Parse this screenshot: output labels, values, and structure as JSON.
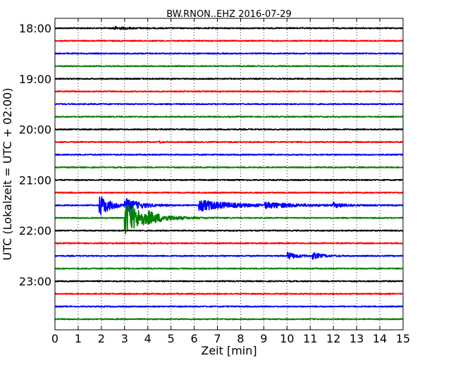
{
  "chart_data": {
    "type": "line",
    "title": "BW.RNON..EHZ 2016-07-29",
    "xlabel": "Zeit  [min]",
    "ylabel": "UTC (Lokalzeit = UTC + 02:00)",
    "xlim": [
      0,
      15
    ],
    "x_ticks": [
      "0",
      "1",
      "2",
      "3",
      "4",
      "5",
      "6",
      "7",
      "8",
      "9",
      "10",
      "11",
      "12",
      "13",
      "14",
      "15"
    ],
    "y_ticks": [
      "18:00",
      "19:00",
      "20:00",
      "21:00",
      "22:00",
      "23:00"
    ],
    "grid": true,
    "trace_colors": [
      "#000000",
      "#ff0000",
      "#0000ff",
      "#008000"
    ],
    "traces": [
      {
        "start": "18:00",
        "color": "#000000",
        "events": [
          {
            "t": 2.5,
            "amp": 0.25,
            "dur": 1.2
          }
        ]
      },
      {
        "start": "18:15",
        "color": "#ff0000",
        "events": []
      },
      {
        "start": "18:30",
        "color": "#0000ff",
        "events": []
      },
      {
        "start": "18:45",
        "color": "#008000",
        "events": []
      },
      {
        "start": "19:00",
        "color": "#000000",
        "events": []
      },
      {
        "start": "19:15",
        "color": "#ff0000",
        "events": []
      },
      {
        "start": "19:30",
        "color": "#0000ff",
        "events": []
      },
      {
        "start": "19:45",
        "color": "#008000",
        "events": []
      },
      {
        "start": "20:00",
        "color": "#000000",
        "events": []
      },
      {
        "start": "20:15",
        "color": "#ff0000",
        "events": [
          {
            "t": 4.5,
            "amp": 0.2,
            "dur": 0.2
          }
        ]
      },
      {
        "start": "20:30",
        "color": "#0000ff",
        "events": []
      },
      {
        "start": "20:45",
        "color": "#008000",
        "events": []
      },
      {
        "start": "21:00",
        "color": "#000000",
        "events": []
      },
      {
        "start": "21:15",
        "color": "#ff0000",
        "events": []
      },
      {
        "start": "21:30",
        "color": "#0000ff",
        "events": [
          {
            "t": 1.9,
            "amp": 1.8,
            "dur": 1.0
          },
          {
            "t": 3.0,
            "amp": 1.0,
            "dur": 1.5
          },
          {
            "t": 6.2,
            "amp": 0.9,
            "dur": 3.0
          },
          {
            "t": 9.0,
            "amp": 0.4,
            "dur": 3.0
          },
          {
            "t": 12.0,
            "amp": 0.35,
            "dur": 1.0
          }
        ]
      },
      {
        "start": "21:45",
        "color": "#008000",
        "events": [
          {
            "t": 3.0,
            "amp": 2.8,
            "dur": 1.8
          },
          {
            "t": 4.0,
            "amp": 0.3,
            "dur": 1.5
          }
        ]
      },
      {
        "start": "22:00",
        "color": "#000000",
        "events": []
      },
      {
        "start": "22:15",
        "color": "#ff0000",
        "events": []
      },
      {
        "start": "22:30",
        "color": "#0000ff",
        "events": [
          {
            "t": 10.0,
            "amp": 0.6,
            "dur": 0.9
          },
          {
            "t": 11.1,
            "amp": 0.45,
            "dur": 1.0
          }
        ]
      },
      {
        "start": "22:45",
        "color": "#008000",
        "events": []
      },
      {
        "start": "23:00",
        "color": "#000000",
        "events": []
      },
      {
        "start": "23:15",
        "color": "#ff0000",
        "events": []
      },
      {
        "start": "23:30",
        "color": "#0000ff",
        "events": []
      },
      {
        "start": "23:45",
        "color": "#008000",
        "events": []
      }
    ]
  }
}
